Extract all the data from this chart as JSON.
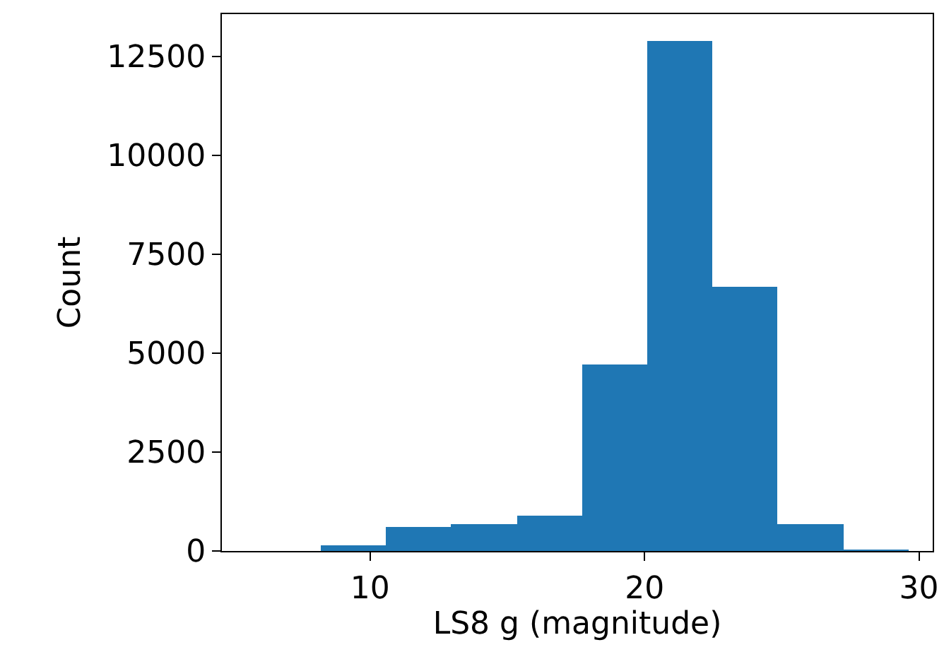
{
  "chart_data": {
    "type": "histogram",
    "xlabel": "LS8 g (magnitude)",
    "ylabel": "Count",
    "color": "#1f77b4",
    "bins": [
      5.82,
      8.2,
      10.58,
      12.96,
      15.34,
      17.72,
      20.1,
      22.48,
      24.86,
      27.24,
      29.62
    ],
    "values": [
      0,
      140,
      600,
      680,
      900,
      4700,
      12900,
      6680,
      680,
      30
    ],
    "xlim": [
      4.6,
      30.5
    ],
    "xticks": [
      10,
      20,
      30
    ],
    "ylim": [
      0,
      13570
    ],
    "yticks": [
      0,
      2500,
      5000,
      7500,
      10000,
      12500
    ],
    "grid": false,
    "legend": false
  }
}
